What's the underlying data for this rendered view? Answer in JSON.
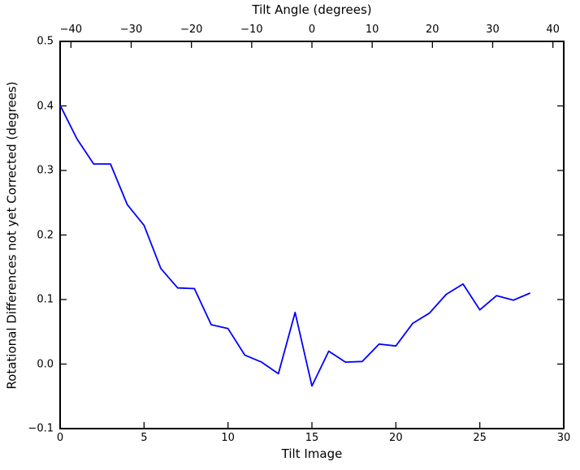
{
  "chart_data": {
    "type": "line",
    "top_axis_label": "Tilt Angle (degrees)",
    "xlabel": "Tilt Image",
    "ylabel": "Rotational Differences not yet Corrected (degrees)",
    "x": [
      0,
      1,
      2,
      3,
      4,
      5,
      6,
      7,
      8,
      9,
      10,
      11,
      12,
      13,
      14,
      15,
      16,
      17,
      18,
      19,
      20,
      21,
      22,
      23,
      24,
      25,
      26,
      27,
      28
    ],
    "series": [
      {
        "name": "rotational-differences",
        "color": "#0000ff",
        "values": [
          0.401,
          0.349,
          0.31,
          0.31,
          0.247,
          0.215,
          0.148,
          0.118,
          0.117,
          0.061,
          0.055,
          0.014,
          0.003,
          -0.015,
          0.08,
          -0.034,
          0.02,
          0.003,
          0.004,
          0.031,
          0.028,
          0.063,
          0.079,
          0.108,
          0.124,
          0.084,
          0.106,
          0.099,
          0.11
        ]
      }
    ],
    "xlim": [
      0,
      30
    ],
    "ylim": [
      -0.1,
      0.5
    ],
    "top_xlim": [
      -41.8,
      41.8
    ],
    "xticks": {
      "values": [
        0,
        5,
        10,
        15,
        20,
        25,
        30
      ],
      "labels": [
        "0",
        "5",
        "10",
        "15",
        "20",
        "25",
        "30"
      ]
    },
    "top_xticks": {
      "values": [
        -40,
        -30,
        -20,
        -10,
        0,
        10,
        20,
        30,
        40
      ],
      "labels": [
        "−40",
        "−30",
        "−20",
        "−10",
        "0",
        "10",
        "20",
        "30",
        "40"
      ]
    },
    "yticks": {
      "values": [
        0.5,
        0.4,
        0.3,
        0.2,
        0.1,
        0.0,
        -0.1
      ],
      "labels": [
        "0.5",
        "0.4",
        "0.3",
        "0.2",
        "0.1",
        "0.0",
        "−0.1"
      ]
    },
    "grid": false,
    "legend": "none",
    "axis_color": "#000000",
    "background": "#ffffff"
  }
}
